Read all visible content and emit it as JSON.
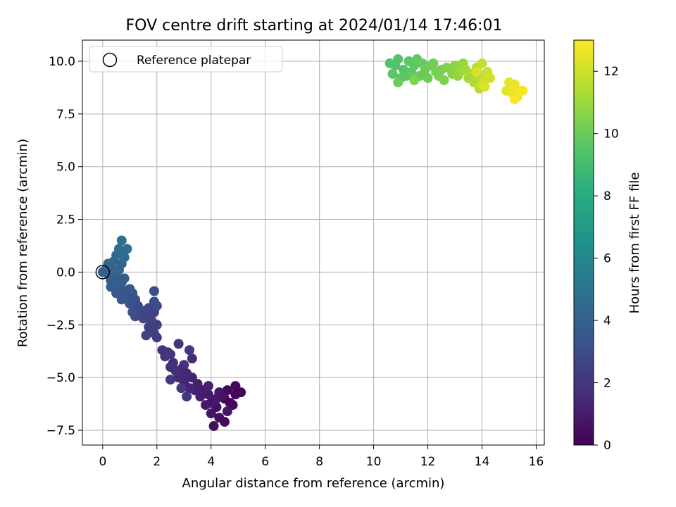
{
  "chart_data": {
    "type": "scatter",
    "title": "FOV centre drift starting at 2024/01/14 17:46:01",
    "xlabel": "Angular distance from reference (arcmin)",
    "ylabel": "Rotation from reference (arcmin)",
    "xlim": [
      -0.75,
      16.3
    ],
    "ylim": [
      -8.2,
      11.0
    ],
    "x_ticks": [
      0,
      2,
      4,
      6,
      8,
      10,
      12,
      14,
      16
    ],
    "x_tick_labels": [
      "0",
      "2",
      "4",
      "6",
      "8",
      "10",
      "12",
      "14",
      "16"
    ],
    "y_ticks": [
      -7.5,
      -5.0,
      -2.5,
      0.0,
      2.5,
      5.0,
      7.5,
      10.0
    ],
    "y_tick_labels": [
      "−7.5",
      "−5.0",
      "−2.5",
      "0.0",
      "2.5",
      "5.0",
      "7.5",
      "10.0"
    ],
    "grid": true,
    "legend": {
      "position": "top-left",
      "entries": [
        {
          "label": "Reference platepar",
          "marker": "open-circle",
          "color": "#000000"
        }
      ]
    },
    "colorbar": {
      "label": "Hours from first FF file",
      "range": [
        0,
        13
      ],
      "ticks": [
        0,
        2,
        4,
        6,
        8,
        10,
        12
      ],
      "tick_labels": [
        "0",
        "2",
        "4",
        "6",
        "8",
        "10",
        "12"
      ],
      "colormap": "viridis"
    },
    "reference_point": {
      "x": 0,
      "y": 0
    },
    "series": [
      {
        "color_value_key": "hours",
        "points": [
          {
            "x": 4.5,
            "y": -6.0,
            "hours": 0.05
          },
          {
            "x": 4.7,
            "y": -6.2,
            "hours": 0.1
          },
          {
            "x": 4.9,
            "y": -5.8,
            "hours": 0.15
          },
          {
            "x": 5.1,
            "y": -5.7,
            "hours": 0.2
          },
          {
            "x": 4.9,
            "y": -5.4,
            "hours": 0.25
          },
          {
            "x": 4.8,
            "y": -6.3,
            "hours": 0.3
          },
          {
            "x": 4.6,
            "y": -5.6,
            "hours": 0.35
          },
          {
            "x": 4.5,
            "y": -7.1,
            "hours": 0.4
          },
          {
            "x": 4.3,
            "y": -6.9,
            "hours": 0.45
          },
          {
            "x": 4.1,
            "y": -7.3,
            "hours": 0.5
          },
          {
            "x": 4.2,
            "y": -6.4,
            "hours": 0.55
          },
          {
            "x": 4.4,
            "y": -5.9,
            "hours": 0.6
          },
          {
            "x": 4.0,
            "y": -6.7,
            "hours": 0.65
          },
          {
            "x": 4.6,
            "y": -6.6,
            "hours": 0.7
          },
          {
            "x": 4.3,
            "y": -5.7,
            "hours": 0.75
          },
          {
            "x": 4.0,
            "y": -6.2,
            "hours": 0.8
          },
          {
            "x": 3.9,
            "y": -5.8,
            "hours": 0.85
          },
          {
            "x": 4.2,
            "y": -6.0,
            "hours": 0.9
          },
          {
            "x": 3.8,
            "y": -6.3,
            "hours": 0.95
          },
          {
            "x": 3.7,
            "y": -5.6,
            "hours": 1.0
          },
          {
            "x": 3.6,
            "y": -5.9,
            "hours": 1.05
          },
          {
            "x": 3.9,
            "y": -5.4,
            "hours": 1.1
          },
          {
            "x": 3.5,
            "y": -5.3,
            "hours": 1.15
          },
          {
            "x": 3.4,
            "y": -5.6,
            "hours": 1.2
          },
          {
            "x": 3.3,
            "y": -5.0,
            "hours": 1.25
          },
          {
            "x": 3.2,
            "y": -5.5,
            "hours": 1.3
          },
          {
            "x": 3.0,
            "y": -5.2,
            "hours": 1.35
          },
          {
            "x": 3.1,
            "y": -4.8,
            "hours": 1.4
          },
          {
            "x": 2.9,
            "y": -4.6,
            "hours": 1.45
          },
          {
            "x": 2.8,
            "y": -5.0,
            "hours": 1.5
          },
          {
            "x": 3.3,
            "y": -4.1,
            "hours": 1.55
          },
          {
            "x": 2.6,
            "y": -4.3,
            "hours": 1.6
          },
          {
            "x": 2.7,
            "y": -4.7,
            "hours": 1.65
          },
          {
            "x": 3.0,
            "y": -4.4,
            "hours": 1.7
          },
          {
            "x": 2.5,
            "y": -4.5,
            "hours": 1.75
          },
          {
            "x": 2.4,
            "y": -3.8,
            "hours": 1.8
          },
          {
            "x": 2.3,
            "y": -4.0,
            "hours": 1.85
          },
          {
            "x": 2.2,
            "y": -3.7,
            "hours": 1.9
          },
          {
            "x": 2.8,
            "y": -3.4,
            "hours": 1.95
          },
          {
            "x": 2.5,
            "y": -3.9,
            "hours": 2.0
          },
          {
            "x": 3.1,
            "y": -5.9,
            "hours": 2.05
          },
          {
            "x": 2.5,
            "y": -5.1,
            "hours": 2.1
          },
          {
            "x": 2.9,
            "y": -5.5,
            "hours": 2.15
          },
          {
            "x": 3.2,
            "y": -3.7,
            "hours": 2.2
          },
          {
            "x": 2.0,
            "y": -3.1,
            "hours": 2.3
          },
          {
            "x": 1.9,
            "y": -2.9,
            "hours": 2.35
          },
          {
            "x": 2.0,
            "y": -2.5,
            "hours": 2.4
          },
          {
            "x": 1.7,
            "y": -2.6,
            "hours": 2.45
          },
          {
            "x": 1.6,
            "y": -3.0,
            "hours": 2.5
          },
          {
            "x": 1.8,
            "y": -2.3,
            "hours": 2.55
          },
          {
            "x": 1.9,
            "y": -1.9,
            "hours": 2.6
          },
          {
            "x": 1.6,
            "y": -2.0,
            "hours": 2.65
          },
          {
            "x": 1.5,
            "y": -2.2,
            "hours": 2.7
          },
          {
            "x": 1.7,
            "y": -1.7,
            "hours": 2.75
          },
          {
            "x": 1.4,
            "y": -1.8,
            "hours": 2.8
          },
          {
            "x": 1.2,
            "y": -2.1,
            "hours": 2.85
          },
          {
            "x": 1.3,
            "y": -1.6,
            "hours": 2.9
          },
          {
            "x": 1.9,
            "y": -1.4,
            "hours": 2.95
          },
          {
            "x": 2.0,
            "y": -1.6,
            "hours": 3.0
          },
          {
            "x": 1.9,
            "y": -0.9,
            "hours": 3.05
          },
          {
            "x": 1.1,
            "y": -1.9,
            "hours": 3.1
          },
          {
            "x": 1.2,
            "y": -1.3,
            "hours": 3.15
          },
          {
            "x": 1.0,
            "y": -1.5,
            "hours": 3.2
          },
          {
            "x": 1.1,
            "y": -1.0,
            "hours": 3.25
          },
          {
            "x": 0.9,
            "y": -1.2,
            "hours": 3.3
          },
          {
            "x": 0.8,
            "y": -0.9,
            "hours": 3.4
          },
          {
            "x": 0.7,
            "y": -1.3,
            "hours": 3.45
          },
          {
            "x": 1.0,
            "y": -0.8,
            "hours": 3.5
          },
          {
            "x": 0.6,
            "y": -0.7,
            "hours": 3.55
          },
          {
            "x": 0.5,
            "y": -1.0,
            "hours": 3.6
          },
          {
            "x": 0.4,
            "y": -0.6,
            "hours": 3.65
          },
          {
            "x": 0.3,
            "y": -0.4,
            "hours": 3.7
          },
          {
            "x": 0.7,
            "y": -0.5,
            "hours": 3.75
          },
          {
            "x": 0.8,
            "y": -0.3,
            "hours": 3.8
          },
          {
            "x": 0.5,
            "y": -0.2,
            "hours": 3.9
          },
          {
            "x": 0.2,
            "y": -0.1,
            "hours": 4.0
          },
          {
            "x": 0.1,
            "y": 0.1,
            "hours": 4.05
          },
          {
            "x": 0.3,
            "y": 0.2,
            "hours": 4.1
          },
          {
            "x": 0.6,
            "y": 0.1,
            "hours": 4.15
          },
          {
            "x": 0.7,
            "y": 0.4,
            "hours": 4.2
          },
          {
            "x": 0.4,
            "y": 0.5,
            "hours": 4.3
          },
          {
            "x": 0.2,
            "y": 0.4,
            "hours": 4.35
          },
          {
            "x": 0.5,
            "y": 0.8,
            "hours": 4.4
          },
          {
            "x": 0.8,
            "y": 0.7,
            "hours": 4.5
          },
          {
            "x": 0.6,
            "y": 1.1,
            "hours": 4.6
          },
          {
            "x": 0.8,
            "y": 1.0,
            "hours": 4.7
          },
          {
            "x": 0.9,
            "y": 1.1,
            "hours": 4.8
          },
          {
            "x": 0.7,
            "y": 1.5,
            "hours": 4.9
          },
          {
            "x": 0.5,
            "y": -0.5,
            "hours": 3.85
          },
          {
            "x": 0.3,
            "y": -0.7,
            "hours": 3.75
          },
          {
            "x": 0.0,
            "y": 0.0,
            "hours": 4.0
          },
          {
            "x": 10.8,
            "y": 9.8,
            "hours": 9.3
          },
          {
            "x": 10.6,
            "y": 9.9,
            "hours": 9.35
          },
          {
            "x": 10.9,
            "y": 10.1,
            "hours": 9.4
          },
          {
            "x": 11.1,
            "y": 9.6,
            "hours": 9.45
          },
          {
            "x": 10.7,
            "y": 9.4,
            "hours": 9.5
          },
          {
            "x": 11.3,
            "y": 10.0,
            "hours": 9.55
          },
          {
            "x": 11.0,
            "y": 9.2,
            "hours": 9.6
          },
          {
            "x": 11.5,
            "y": 9.8,
            "hours": 9.65
          },
          {
            "x": 11.2,
            "y": 9.3,
            "hours": 9.7
          },
          {
            "x": 11.6,
            "y": 10.1,
            "hours": 9.75
          },
          {
            "x": 11.4,
            "y": 9.5,
            "hours": 9.8
          },
          {
            "x": 11.8,
            "y": 9.9,
            "hours": 9.85
          },
          {
            "x": 11.7,
            "y": 9.3,
            "hours": 9.9
          },
          {
            "x": 10.9,
            "y": 9.0,
            "hours": 9.95
          },
          {
            "x": 11.9,
            "y": 9.6,
            "hours": 10.0
          },
          {
            "x": 12.1,
            "y": 9.8,
            "hours": 10.05
          },
          {
            "x": 12.0,
            "y": 9.2,
            "hours": 10.1
          },
          {
            "x": 12.3,
            "y": 9.5,
            "hours": 10.15
          },
          {
            "x": 12.2,
            "y": 9.9,
            "hours": 10.2
          },
          {
            "x": 12.5,
            "y": 9.6,
            "hours": 10.3
          },
          {
            "x": 12.4,
            "y": 9.3,
            "hours": 10.35
          },
          {
            "x": 12.6,
            "y": 9.1,
            "hours": 10.4
          },
          {
            "x": 11.5,
            "y": 9.1,
            "hours": 10.45
          },
          {
            "x": 12.7,
            "y": 9.7,
            "hours": 10.5
          },
          {
            "x": 12.9,
            "y": 9.4,
            "hours": 10.6
          },
          {
            "x": 13.0,
            "y": 9.8,
            "hours": 10.7
          },
          {
            "x": 13.1,
            "y": 9.3,
            "hours": 10.8
          },
          {
            "x": 13.3,
            "y": 9.9,
            "hours": 10.9
          },
          {
            "x": 13.2,
            "y": 9.5,
            "hours": 11.0
          },
          {
            "x": 13.5,
            "y": 9.2,
            "hours": 11.1
          },
          {
            "x": 13.4,
            "y": 9.6,
            "hours": 11.2
          },
          {
            "x": 13.6,
            "y": 9.4,
            "hours": 11.3
          },
          {
            "x": 13.7,
            "y": 9.0,
            "hours": 11.4
          },
          {
            "x": 13.8,
            "y": 9.7,
            "hours": 11.5
          },
          {
            "x": 13.9,
            "y": 9.3,
            "hours": 11.6
          },
          {
            "x": 13.9,
            "y": 8.7,
            "hours": 11.7
          },
          {
            "x": 14.0,
            "y": 9.9,
            "hours": 11.8
          },
          {
            "x": 14.1,
            "y": 9.1,
            "hours": 11.9
          },
          {
            "x": 14.2,
            "y": 9.5,
            "hours": 12.0
          },
          {
            "x": 14.0,
            "y": 8.9,
            "hours": 12.1
          },
          {
            "x": 14.3,
            "y": 9.2,
            "hours": 12.15
          },
          {
            "x": 13.8,
            "y": 9.5,
            "hours": 12.2
          },
          {
            "x": 14.1,
            "y": 8.8,
            "hours": 12.25
          },
          {
            "x": 14.9,
            "y": 8.6,
            "hours": 12.4
          },
          {
            "x": 15.0,
            "y": 9.0,
            "hours": 12.5
          },
          {
            "x": 15.1,
            "y": 8.5,
            "hours": 12.6
          },
          {
            "x": 15.2,
            "y": 8.9,
            "hours": 12.65
          },
          {
            "x": 15.3,
            "y": 8.3,
            "hours": 12.7
          },
          {
            "x": 15.4,
            "y": 8.6,
            "hours": 12.8
          },
          {
            "x": 15.2,
            "y": 8.2,
            "hours": 12.85
          },
          {
            "x": 15.5,
            "y": 8.6,
            "hours": 12.9
          }
        ]
      }
    ]
  },
  "colors": {
    "grid": "#b0b0b0",
    "axes": "#000000",
    "background": "#ffffff"
  }
}
